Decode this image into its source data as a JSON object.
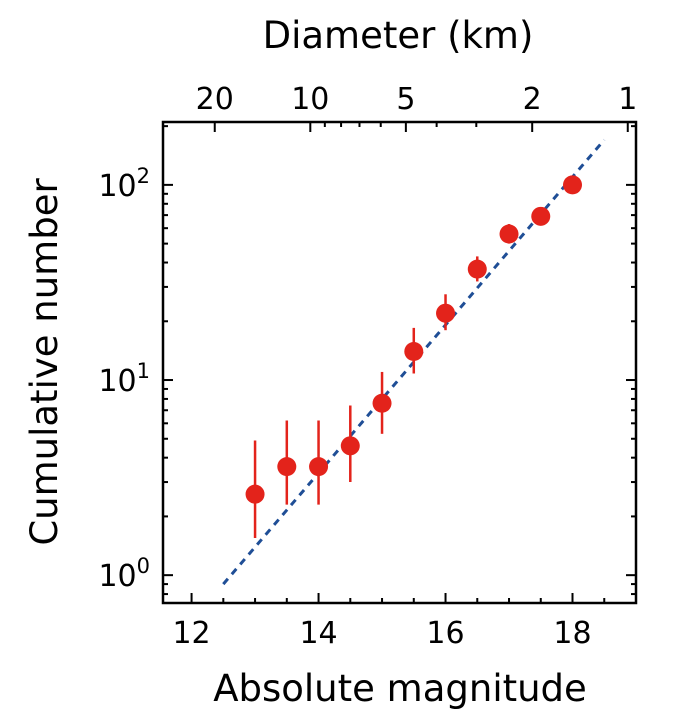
{
  "chart_data": {
    "type": "scatter",
    "xlabel": "Absolute magnitude",
    "ylabel": "Cumulative number",
    "top_axis_label": "Diameter (km)",
    "xlim": [
      11.55,
      19.0
    ],
    "ylim": [
      0.72,
      210
    ],
    "y_scale": "log",
    "x_ticks": [
      {
        "value": 12,
        "label": "12"
      },
      {
        "value": 14,
        "label": "14"
      },
      {
        "value": 16,
        "label": "16"
      },
      {
        "value": 18,
        "label": "18"
      }
    ],
    "y_ticks": [
      {
        "value": 1,
        "base": "10",
        "exp": "0"
      },
      {
        "value": 10,
        "base": "10",
        "exp": "1"
      },
      {
        "value": 100,
        "base": "10",
        "exp": "2"
      }
    ],
    "top_ticks": [
      {
        "diameter_km": 20,
        "label": "20"
      },
      {
        "diameter_km": 10,
        "label": "10"
      },
      {
        "diameter_km": 5,
        "label": "5"
      },
      {
        "diameter_km": 2,
        "label": "2"
      },
      {
        "diameter_km": 1,
        "label": "1"
      }
    ],
    "points": [
      {
        "x": 13.0,
        "y": 2.6,
        "ylow": 1.55,
        "yhigh": 4.9
      },
      {
        "x": 13.5,
        "y": 3.6,
        "ylow": 2.3,
        "yhigh": 6.2
      },
      {
        "x": 14.0,
        "y": 3.6,
        "ylow": 2.3,
        "yhigh": 6.2
      },
      {
        "x": 14.5,
        "y": 4.6,
        "ylow": 3.0,
        "yhigh": 7.4
      },
      {
        "x": 15.0,
        "y": 7.6,
        "ylow": 5.3,
        "yhigh": 11.0
      },
      {
        "x": 15.5,
        "y": 14.0,
        "ylow": 10.8,
        "yhigh": 18.5
      },
      {
        "x": 16.0,
        "y": 22.0,
        "ylow": 18.0,
        "yhigh": 27.5
      },
      {
        "x": 16.5,
        "y": 37.0,
        "ylow": 32.0,
        "yhigh": 43.0
      },
      {
        "x": 17.0,
        "y": 56.0,
        "ylow": 50.0,
        "yhigh": 63.0
      },
      {
        "x": 17.5,
        "y": 69.0,
        "ylow": 63.0,
        "yhigh": 76.0
      },
      {
        "x": 18.0,
        "y": 100.0,
        "ylow": 93.0,
        "yhigh": 107.0
      }
    ],
    "fit_line": {
      "x": [
        12.5,
        18.5
      ],
      "y": [
        0.9,
        170
      ],
      "style": "dashed"
    },
    "colors": {
      "points": "#e3231b",
      "fit_line": "#1f4e96",
      "axes": "#000000"
    }
  }
}
